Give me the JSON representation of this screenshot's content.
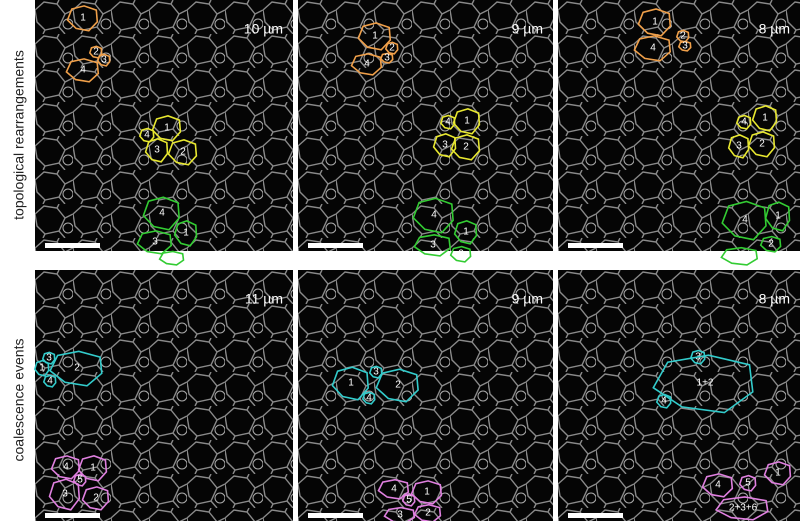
{
  "row_labels": [
    "topological rearrangements",
    "coalescence events"
  ],
  "panels": [
    {
      "depth": "10 µm",
      "groups": [
        {
          "color": "#f0a04a",
          "cells": [
            "1",
            "2",
            "3",
            "4"
          ]
        },
        {
          "color": "#e8e830",
          "cells": [
            "4",
            "1",
            "3",
            "2"
          ]
        },
        {
          "color": "#33cc33",
          "cells": [
            "4",
            "3",
            "1",
            "2"
          ]
        }
      ]
    },
    {
      "depth": "9 µm",
      "groups": [
        {
          "color": "#f0a04a",
          "cells": [
            "1",
            "2",
            "3",
            "4"
          ]
        },
        {
          "color": "#e8e830",
          "cells": [
            "4",
            "1",
            "3",
            "2"
          ]
        },
        {
          "color": "#33cc33",
          "cells": [
            "4",
            "3",
            "1",
            "2"
          ]
        }
      ]
    },
    {
      "depth": "8 µm",
      "groups": [
        {
          "color": "#f0a04a",
          "cells": [
            "1",
            "2",
            "3",
            "4"
          ]
        },
        {
          "color": "#e8e830",
          "cells": [
            "4",
            "1",
            "3",
            "2"
          ]
        },
        {
          "color": "#33cc33",
          "cells": [
            "4",
            "1",
            "2",
            "3"
          ]
        }
      ]
    },
    {
      "depth": "11 µm",
      "groups": [
        {
          "color": "#33cccc",
          "cells": [
            "3",
            "1",
            "2",
            "4"
          ]
        },
        {
          "color": "#e080e0",
          "cells": [
            "4",
            "1",
            "5",
            "3",
            "2"
          ]
        }
      ]
    },
    {
      "depth": "9 µm",
      "groups": [
        {
          "color": "#33cccc",
          "cells": [
            "1",
            "3",
            "2",
            "4"
          ]
        },
        {
          "color": "#e080e0",
          "cells": [
            "4",
            "1",
            "5",
            "3",
            "2"
          ]
        }
      ]
    },
    {
      "depth": "8 µm",
      "groups": [
        {
          "color": "#33cccc",
          "cells": [
            "3",
            "1+2",
            "4"
          ]
        },
        {
          "color": "#e080e0",
          "cells": [
            "4",
            "5",
            "1",
            "2+3+6"
          ]
        }
      ]
    }
  ]
}
